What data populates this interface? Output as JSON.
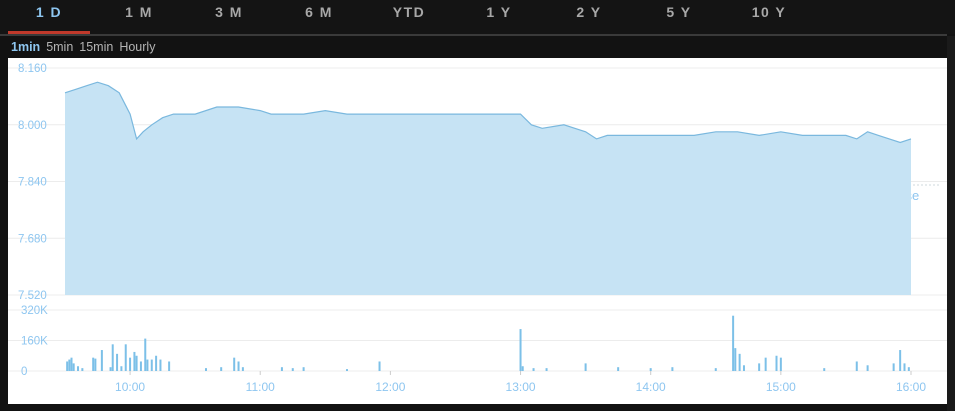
{
  "range_tabs": [
    {
      "label": "1 D",
      "active": true
    },
    {
      "label": "1 M",
      "active": false
    },
    {
      "label": "3 M",
      "active": false
    },
    {
      "label": "6 M",
      "active": false
    },
    {
      "label": "YTD",
      "active": false
    },
    {
      "label": "1 Y",
      "active": false
    },
    {
      "label": "2 Y",
      "active": false
    },
    {
      "label": "5 Y",
      "active": false
    },
    {
      "label": "10 Y",
      "active": false
    }
  ],
  "interval_tabs": [
    {
      "label": "1min",
      "active": true
    },
    {
      "label": "5min",
      "active": false
    },
    {
      "label": "15min",
      "active": false
    },
    {
      "label": "Hourly",
      "active": false
    }
  ],
  "colors": {
    "accent": "#8ec6f0",
    "active_underline": "#c0392b",
    "area_fill": "#c6e3f4",
    "line": "#7ab8de",
    "volume_bar": "#7cc0e8",
    "tick_label": "#8ec6f0"
  },
  "chart_data": {
    "type": "area",
    "price_panel": {
      "y_ticks": [
        "8.160",
        "8.000",
        "7.840",
        "7.680",
        "7.520"
      ],
      "ylim": [
        7.52,
        8.16
      ],
      "xlim": [
        "09:30",
        "16:00"
      ],
      "x_ticks": [
        "10:00",
        "11:00",
        "12:00",
        "13:00",
        "14:00",
        "15:00",
        "16:00"
      ],
      "prev_close": {
        "label": "Prev. Close",
        "value": "7.830"
      },
      "series": [
        {
          "x": [
            "09:30",
            "09:35",
            "09:40",
            "09:45",
            "09:50",
            "09:55",
            "10:00",
            "10:03",
            "10:06",
            "10:10",
            "10:15",
            "10:20",
            "10:30",
            "10:40",
            "10:50",
            "11:00",
            "11:05",
            "11:10",
            "11:20",
            "11:30",
            "11:40",
            "11:50",
            "12:00",
            "12:30",
            "13:00",
            "13:05",
            "13:10",
            "13:20",
            "13:30",
            "13:35",
            "13:40",
            "13:50",
            "14:00",
            "14:10",
            "14:20",
            "14:30",
            "14:40",
            "14:50",
            "15:00",
            "15:10",
            "15:20",
            "15:30",
            "15:35",
            "15:40",
            "15:45",
            "15:50",
            "15:55",
            "16:00"
          ],
          "y": [
            8.09,
            8.1,
            8.11,
            8.12,
            8.11,
            8.09,
            8.03,
            7.96,
            7.98,
            8.0,
            8.02,
            8.03,
            8.03,
            8.05,
            8.05,
            8.04,
            8.03,
            8.03,
            8.03,
            8.04,
            8.03,
            8.03,
            8.03,
            8.03,
            8.03,
            8.0,
            7.99,
            8.0,
            7.98,
            7.96,
            7.97,
            7.97,
            7.97,
            7.97,
            7.97,
            7.98,
            7.98,
            7.97,
            7.98,
            7.97,
            7.97,
            7.97,
            7.96,
            7.98,
            7.97,
            7.96,
            7.95,
            7.96
          ]
        }
      ]
    },
    "volume_panel": {
      "y_ticks": [
        "320K",
        "160K",
        "0"
      ],
      "ylim": [
        0,
        320000
      ],
      "bars": [
        {
          "t": "09:31",
          "v": 50000
        },
        {
          "t": "09:32",
          "v": 60000
        },
        {
          "t": "09:33",
          "v": 70000
        },
        {
          "t": "09:34",
          "v": 40000
        },
        {
          "t": "09:36",
          "v": 25000
        },
        {
          "t": "09:38",
          "v": 15000
        },
        {
          "t": "09:43",
          "v": 70000
        },
        {
          "t": "09:44",
          "v": 65000
        },
        {
          "t": "09:47",
          "v": 110000
        },
        {
          "t": "09:51",
          "v": 20000
        },
        {
          "t": "09:52",
          "v": 140000
        },
        {
          "t": "09:54",
          "v": 90000
        },
        {
          "t": "09:56",
          "v": 25000
        },
        {
          "t": "09:58",
          "v": 140000
        },
        {
          "t": "10:00",
          "v": 70000
        },
        {
          "t": "10:02",
          "v": 100000
        },
        {
          "t": "10:03",
          "v": 80000
        },
        {
          "t": "10:05",
          "v": 50000
        },
        {
          "t": "10:07",
          "v": 170000
        },
        {
          "t": "10:08",
          "v": 60000
        },
        {
          "t": "10:10",
          "v": 60000
        },
        {
          "t": "10:12",
          "v": 80000
        },
        {
          "t": "10:14",
          "v": 60000
        },
        {
          "t": "10:18",
          "v": 50000
        },
        {
          "t": "10:35",
          "v": 15000
        },
        {
          "t": "10:42",
          "v": 20000
        },
        {
          "t": "10:48",
          "v": 70000
        },
        {
          "t": "10:50",
          "v": 50000
        },
        {
          "t": "10:52",
          "v": 20000
        },
        {
          "t": "11:10",
          "v": 20000
        },
        {
          "t": "11:15",
          "v": 15000
        },
        {
          "t": "11:20",
          "v": 20000
        },
        {
          "t": "11:40",
          "v": 10000
        },
        {
          "t": "11:55",
          "v": 50000
        },
        {
          "t": "13:00",
          "v": 220000
        },
        {
          "t": "13:01",
          "v": 25000
        },
        {
          "t": "13:06",
          "v": 15000
        },
        {
          "t": "13:12",
          "v": 15000
        },
        {
          "t": "13:30",
          "v": 40000
        },
        {
          "t": "13:45",
          "v": 20000
        },
        {
          "t": "14:00",
          "v": 15000
        },
        {
          "t": "14:10",
          "v": 20000
        },
        {
          "t": "14:30",
          "v": 15000
        },
        {
          "t": "14:38",
          "v": 290000
        },
        {
          "t": "14:39",
          "v": 120000
        },
        {
          "t": "14:41",
          "v": 90000
        },
        {
          "t": "14:43",
          "v": 30000
        },
        {
          "t": "14:50",
          "v": 40000
        },
        {
          "t": "14:53",
          "v": 70000
        },
        {
          "t": "14:58",
          "v": 80000
        },
        {
          "t": "15:00",
          "v": 70000
        },
        {
          "t": "15:20",
          "v": 15000
        },
        {
          "t": "15:35",
          "v": 50000
        },
        {
          "t": "15:40",
          "v": 30000
        },
        {
          "t": "15:52",
          "v": 40000
        },
        {
          "t": "15:55",
          "v": 110000
        },
        {
          "t": "15:57",
          "v": 40000
        },
        {
          "t": "15:59",
          "v": 20000
        }
      ]
    }
  }
}
